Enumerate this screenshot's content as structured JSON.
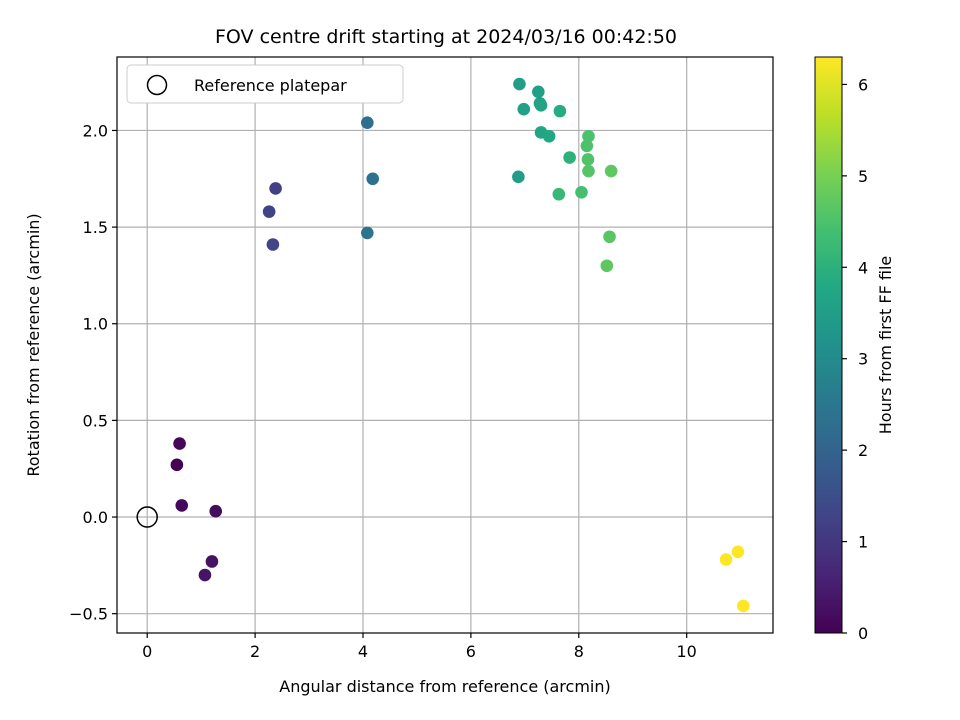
{
  "chart_data": {
    "type": "scatter",
    "title": "FOV centre drift starting at 2024/03/16 00:42:50",
    "xlabel": "Angular distance from reference (arcmin)",
    "ylabel": "Rotation from reference (arcmin)",
    "xlim": [
      -0.56,
      11.6
    ],
    "ylim": [
      -0.6,
      2.38
    ],
    "x_ticks": [
      0,
      2,
      4,
      6,
      8,
      10
    ],
    "x_tick_labels": [
      "0",
      "2",
      "4",
      "6",
      "8",
      "10"
    ],
    "y_ticks": [
      -0.5,
      0.0,
      0.5,
      1.0,
      1.5,
      2.0
    ],
    "y_tick_labels": [
      "−0.5",
      "0.0",
      "0.5",
      "1.0",
      "1.5",
      "2.0"
    ],
    "grid": true,
    "legend": {
      "placement": "top-left",
      "entries": [
        "Reference platepar"
      ]
    },
    "reference_point": {
      "x": 0,
      "y": 0,
      "marker": "open-circle"
    },
    "colorbar": {
      "label": "Hours from first FF file",
      "range": [
        0,
        6.3
      ],
      "ticks": [
        0,
        1,
        2,
        3,
        4,
        5,
        6
      ],
      "tick_labels": [
        "0",
        "1",
        "2",
        "3",
        "4",
        "5",
        "6"
      ],
      "colormap": "viridis"
    },
    "points": [
      {
        "x": 0.55,
        "y": 0.27,
        "hours": 0.0
      },
      {
        "x": 0.6,
        "y": 0.38,
        "hours": 0.1
      },
      {
        "x": 0.64,
        "y": 0.06,
        "hours": 0.15
      },
      {
        "x": 1.27,
        "y": 0.03,
        "hours": 0.2
      },
      {
        "x": 1.2,
        "y": -0.23,
        "hours": 0.3
      },
      {
        "x": 1.07,
        "y": -0.3,
        "hours": 0.35
      },
      {
        "x": 2.38,
        "y": 1.7,
        "hours": 1.2
      },
      {
        "x": 2.26,
        "y": 1.58,
        "hours": 1.25
      },
      {
        "x": 2.33,
        "y": 1.41,
        "hours": 1.3
      },
      {
        "x": 4.08,
        "y": 2.04,
        "hours": 2.3
      },
      {
        "x": 4.18,
        "y": 1.75,
        "hours": 2.35
      },
      {
        "x": 4.08,
        "y": 1.47,
        "hours": 2.4
      },
      {
        "x": 6.9,
        "y": 2.24,
        "hours": 3.5
      },
      {
        "x": 7.25,
        "y": 2.2,
        "hours": 3.55
      },
      {
        "x": 6.98,
        "y": 2.11,
        "hours": 3.6
      },
      {
        "x": 7.28,
        "y": 2.14,
        "hours": 3.6
      },
      {
        "x": 7.3,
        "y": 2.13,
        "hours": 3.65
      },
      {
        "x": 7.65,
        "y": 2.1,
        "hours": 3.85
      },
      {
        "x": 7.3,
        "y": 1.99,
        "hours": 3.7
      },
      {
        "x": 7.45,
        "y": 1.97,
        "hours": 3.75
      },
      {
        "x": 6.88,
        "y": 1.76,
        "hours": 3.5
      },
      {
        "x": 7.83,
        "y": 1.86,
        "hours": 4.0
      },
      {
        "x": 8.18,
        "y": 1.97,
        "hours": 4.5
      },
      {
        "x": 8.15,
        "y": 1.92,
        "hours": 4.5
      },
      {
        "x": 8.17,
        "y": 1.85,
        "hours": 4.55
      },
      {
        "x": 8.18,
        "y": 1.79,
        "hours": 4.6
      },
      {
        "x": 8.6,
        "y": 1.79,
        "hours": 4.7
      },
      {
        "x": 7.63,
        "y": 1.67,
        "hours": 4.2
      },
      {
        "x": 8.05,
        "y": 1.68,
        "hours": 4.4
      },
      {
        "x": 8.57,
        "y": 1.45,
        "hours": 4.65
      },
      {
        "x": 8.52,
        "y": 1.3,
        "hours": 4.7
      },
      {
        "x": 10.73,
        "y": -0.22,
        "hours": 6.3
      },
      {
        "x": 10.95,
        "y": -0.18,
        "hours": 6.3
      },
      {
        "x": 11.05,
        "y": -0.46,
        "hours": 6.3
      }
    ]
  }
}
